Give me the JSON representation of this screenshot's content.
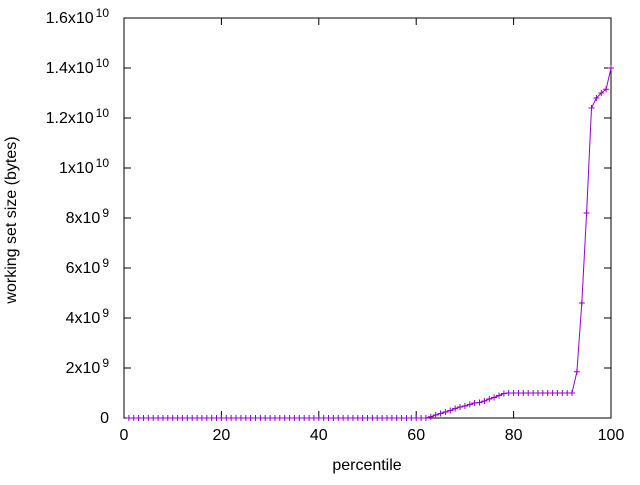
{
  "style": {
    "background": "#ffffff",
    "axis_color": "#000000",
    "text_color": "#000000"
  },
  "chart_data": {
    "type": "line",
    "title": "",
    "xlabel": "percentile",
    "ylabel": "working set size (bytes)",
    "xlim": [
      0,
      100
    ],
    "ylim": [
      0,
      16000000000
    ],
    "grid": false,
    "legend": "none",
    "x_ticks": [
      {
        "v": 0,
        "label": "0"
      },
      {
        "v": 20,
        "label": "20"
      },
      {
        "v": 40,
        "label": "40"
      },
      {
        "v": 60,
        "label": "60"
      },
      {
        "v": 80,
        "label": "80"
      },
      {
        "v": 100,
        "label": "100"
      }
    ],
    "y_ticks": [
      {
        "v": 0,
        "label": "0"
      },
      {
        "v": 2000000000,
        "label": "2x10^9"
      },
      {
        "v": 4000000000,
        "label": "4x10^9"
      },
      {
        "v": 6000000000,
        "label": "6x10^9"
      },
      {
        "v": 8000000000,
        "label": "8x10^9"
      },
      {
        "v": 10000000000,
        "label": "1x10^10"
      },
      {
        "v": 12000000000,
        "label": "1.2x10^10"
      },
      {
        "v": 14000000000,
        "label": "1.4x10^10"
      },
      {
        "v": 16000000000,
        "label": "1.6x10^10"
      }
    ],
    "series": [
      {
        "name": "working set size",
        "color": "#9400d3",
        "marker": "plus",
        "points": [
          [
            1,
            0
          ],
          [
            2,
            0
          ],
          [
            3,
            0
          ],
          [
            4,
            0
          ],
          [
            5,
            0
          ],
          [
            6,
            0
          ],
          [
            7,
            0
          ],
          [
            8,
            0
          ],
          [
            9,
            0
          ],
          [
            10,
            0
          ],
          [
            11,
            0
          ],
          [
            12,
            0
          ],
          [
            13,
            0
          ],
          [
            14,
            0
          ],
          [
            15,
            0
          ],
          [
            16,
            0
          ],
          [
            17,
            0
          ],
          [
            18,
            0
          ],
          [
            19,
            0
          ],
          [
            20,
            0
          ],
          [
            21,
            0
          ],
          [
            22,
            0
          ],
          [
            23,
            0
          ],
          [
            24,
            0
          ],
          [
            25,
            0
          ],
          [
            26,
            0
          ],
          [
            27,
            0
          ],
          [
            28,
            0
          ],
          [
            29,
            0
          ],
          [
            30,
            0
          ],
          [
            31,
            0
          ],
          [
            32,
            0
          ],
          [
            33,
            0
          ],
          [
            34,
            0
          ],
          [
            35,
            0
          ],
          [
            36,
            0
          ],
          [
            37,
            0
          ],
          [
            38,
            0
          ],
          [
            39,
            0
          ],
          [
            40,
            0
          ],
          [
            41,
            0
          ],
          [
            42,
            0
          ],
          [
            43,
            0
          ],
          [
            44,
            0
          ],
          [
            45,
            0
          ],
          [
            46,
            0
          ],
          [
            47,
            0
          ],
          [
            48,
            0
          ],
          [
            49,
            0
          ],
          [
            50,
            0
          ],
          [
            51,
            0
          ],
          [
            52,
            0
          ],
          [
            53,
            0
          ],
          [
            54,
            0
          ],
          [
            55,
            0
          ],
          [
            56,
            0
          ],
          [
            57,
            0
          ],
          [
            58,
            0
          ],
          [
            59,
            0
          ],
          [
            60,
            0
          ],
          [
            61,
            0
          ],
          [
            62,
            0
          ],
          [
            63,
            50000000
          ],
          [
            64,
            120000000
          ],
          [
            65,
            180000000
          ],
          [
            66,
            240000000
          ],
          [
            67,
            300000000
          ],
          [
            68,
            380000000
          ],
          [
            69,
            440000000
          ],
          [
            70,
            480000000
          ],
          [
            71,
            540000000
          ],
          [
            72,
            600000000
          ],
          [
            73,
            620000000
          ],
          [
            74,
            680000000
          ],
          [
            75,
            760000000
          ],
          [
            76,
            820000000
          ],
          [
            77,
            900000000
          ],
          [
            78,
            980000000
          ],
          [
            79,
            1000000000
          ],
          [
            80,
            1000000000
          ],
          [
            81,
            1000000000
          ],
          [
            82,
            1000000000
          ],
          [
            83,
            1000000000
          ],
          [
            84,
            1000000000
          ],
          [
            85,
            1000000000
          ],
          [
            86,
            1000000000
          ],
          [
            87,
            1000000000
          ],
          [
            88,
            1000000000
          ],
          [
            89,
            1000000000
          ],
          [
            90,
            1000000000
          ],
          [
            91,
            1000000000
          ],
          [
            92,
            1000000000
          ],
          [
            93,
            1850000000
          ],
          [
            94,
            4600000000
          ],
          [
            95,
            8200000000
          ],
          [
            96,
            12400000000
          ],
          [
            97,
            12800000000
          ],
          [
            98,
            13000000000
          ],
          [
            99,
            13150000000
          ],
          [
            100,
            14000000000
          ]
        ]
      }
    ]
  }
}
